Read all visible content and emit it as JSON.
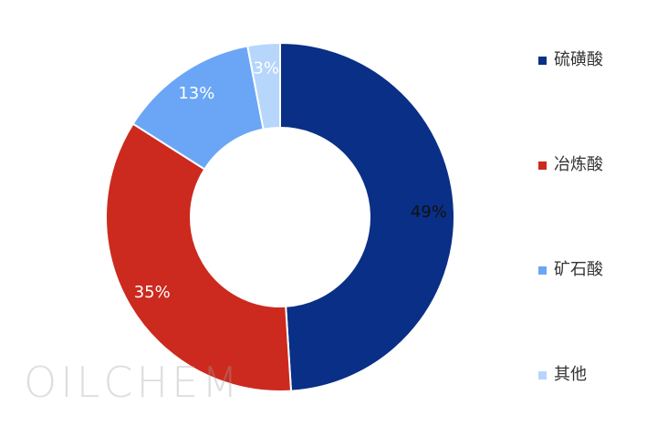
{
  "chart_data": {
    "type": "pie",
    "donut": true,
    "title": "",
    "categories": [
      "硫磺酸",
      "冶炼酸",
      "矿石酸",
      "其他"
    ],
    "values": [
      49,
      35,
      13,
      3
    ],
    "data_labels": [
      "49%",
      "35%",
      "13%",
      "3%"
    ],
    "colors": [
      "#0a2f86",
      "#cc2a1e",
      "#6aa6f5",
      "#b6d6fb"
    ],
    "label_colors": [
      "#111111",
      "#ffffff",
      "#ffffff",
      "#ffffff"
    ],
    "legend_position": "right"
  },
  "watermark": "OILCHEM"
}
